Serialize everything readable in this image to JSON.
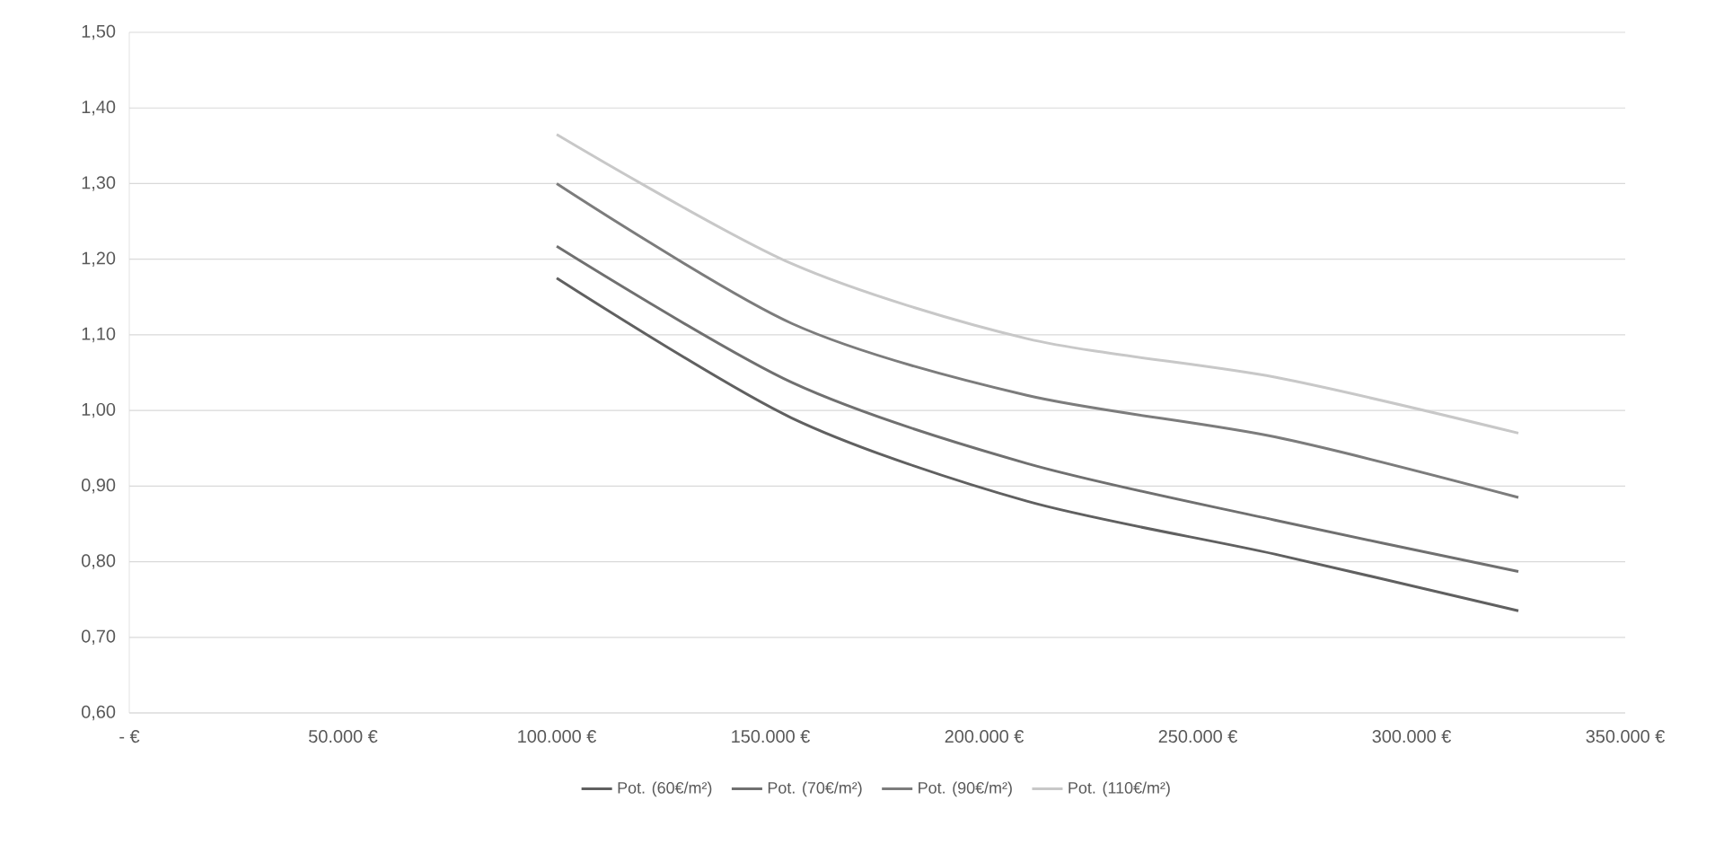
{
  "chart_data": {
    "type": "line",
    "x": [
      100000,
      155000,
      210000,
      268000,
      325000
    ],
    "series": [
      {
        "name": "Pot. (60€/m²)",
        "color": "#606060",
        "values": [
          1.175,
          0.99,
          0.88,
          0.81,
          0.735
        ]
      },
      {
        "name": "Pot. (70€/m²)",
        "color": "#707070",
        "values": [
          1.217,
          1.037,
          0.93,
          0.855,
          0.787
        ]
      },
      {
        "name": "Pot. (90€/m²)",
        "color": "#7c7c7c",
        "values": [
          1.3,
          1.115,
          1.02,
          0.965,
          0.885
        ]
      },
      {
        "name": "Pot. (110€/m²)",
        "color": "#c8c8c8",
        "values": [
          1.365,
          1.194,
          1.095,
          1.044,
          0.97
        ]
      }
    ],
    "xlim": [
      0,
      350000
    ],
    "xticks": [
      {
        "value": 0,
        "label": "-  €"
      },
      {
        "value": 50000,
        "label": "50.000 €"
      },
      {
        "value": 100000,
        "label": "100.000 €"
      },
      {
        "value": 150000,
        "label": "150.000 €"
      },
      {
        "value": 200000,
        "label": "200.000 €"
      },
      {
        "value": 250000,
        "label": "250.000 €"
      },
      {
        "value": 300000,
        "label": "300.000 €"
      },
      {
        "value": 350000,
        "label": "350.000 €"
      }
    ],
    "ylim": [
      0.6,
      1.5
    ],
    "yticks": [
      {
        "value": 0.6,
        "label": "0,60"
      },
      {
        "value": 0.7,
        "label": "0,70"
      },
      {
        "value": 0.8,
        "label": "0,80"
      },
      {
        "value": 0.9,
        "label": "0,90"
      },
      {
        "value": 1.0,
        "label": "1,00"
      },
      {
        "value": 1.1,
        "label": "1,10"
      },
      {
        "value": 1.2,
        "label": "1,20"
      },
      {
        "value": 1.3,
        "label": "1,30"
      },
      {
        "value": 1.4,
        "label": "1,40"
      },
      {
        "value": 1.5,
        "label": "1,50"
      }
    ],
    "grid": "y",
    "legend": "bottom"
  }
}
